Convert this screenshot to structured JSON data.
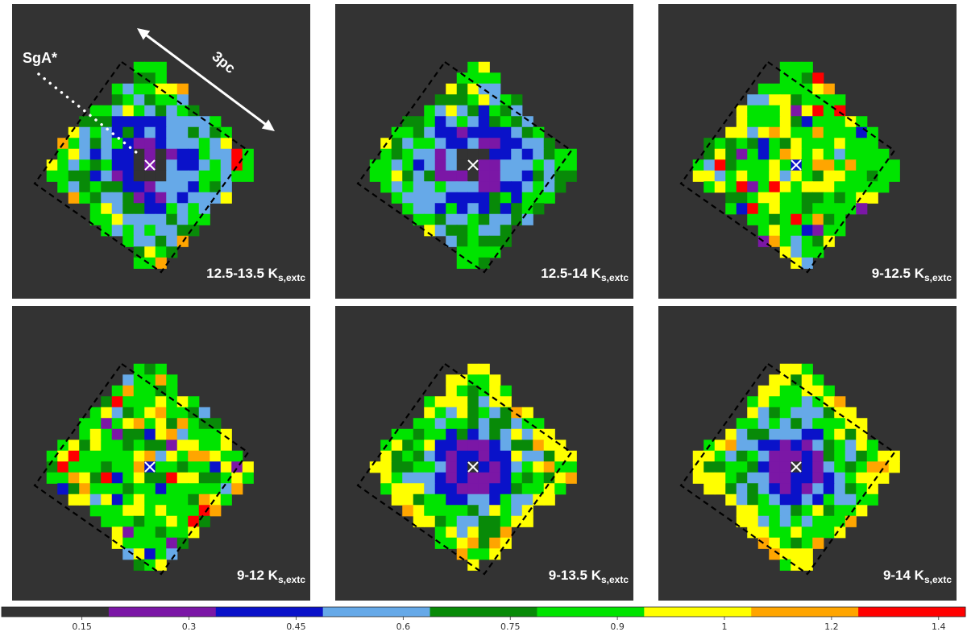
{
  "chart_data": {
    "type": "heatmap",
    "panels": [
      {
        "label_main": "12.5-13.5 K",
        "label_sub": "s,extc",
        "pattern": "deep"
      },
      {
        "label_main": "12.5-14 K",
        "label_sub": "s,extc",
        "pattern": "deep"
      },
      {
        "label_main": "9-12.5 K",
        "label_sub": "s,extc",
        "pattern": "flat"
      },
      {
        "label_main": "9-12 K",
        "label_sub": "s,extc",
        "pattern": "flat"
      },
      {
        "label_main": "9-13.5 K",
        "label_sub": "s,extc",
        "pattern": "mid"
      },
      {
        "label_main": "9-14 K",
        "label_sub": "s,extc",
        "pattern": "mid"
      }
    ],
    "annotations": {
      "source_label": "SgA*",
      "scale_label": "3pc"
    },
    "colorbar": {
      "tick_labels": [
        "0.15",
        "0.3",
        "0.45",
        "0.6",
        "0.75",
        "0.9",
        "1",
        "1.2",
        "1.4"
      ],
      "bins": [
        {
          "color": "#333333"
        },
        {
          "color": "#7b17a6"
        },
        {
          "color": "#0a12c9"
        },
        {
          "color": "#66a9e8"
        },
        {
          "color": "#088a08"
        },
        {
          "color": "#00e400"
        },
        {
          "color": "#ffff00"
        },
        {
          "color": "#ffa500"
        },
        {
          "color": "#ff0000"
        }
      ]
    },
    "colors": {
      "background": "#333333",
      "marker": "#ffffff",
      "dashed_box": "#000000"
    }
  }
}
